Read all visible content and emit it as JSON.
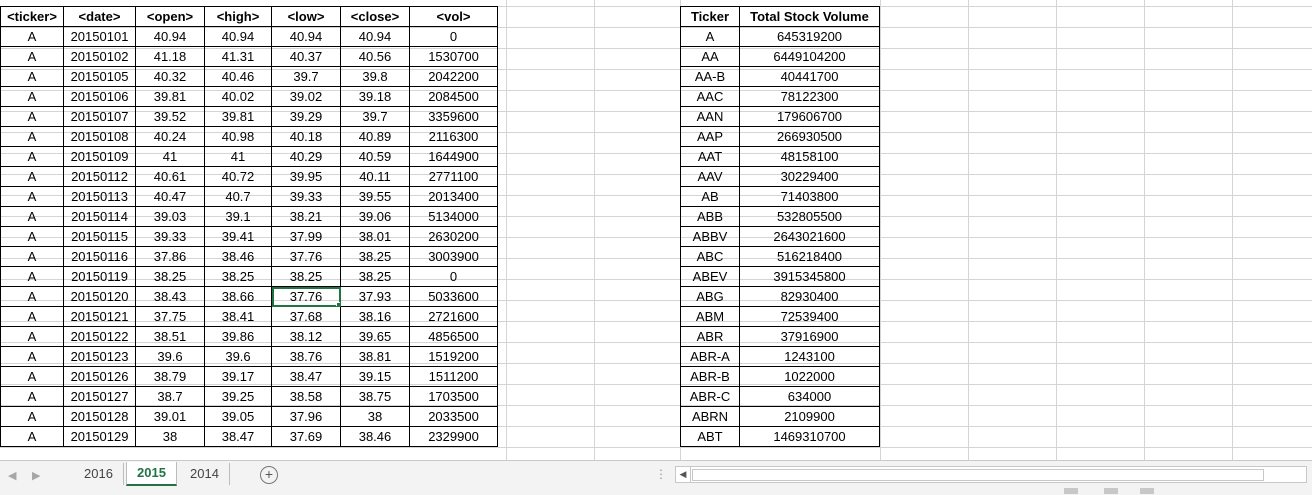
{
  "sheet1": {
    "headers": [
      "<ticker>",
      "<date>",
      "<open>",
      "<high>",
      "<low>",
      "<close>",
      "<vol>"
    ],
    "rows": [
      [
        "A",
        "20150101",
        "40.94",
        "40.94",
        "40.94",
        "40.94",
        "0"
      ],
      [
        "A",
        "20150102",
        "41.18",
        "41.31",
        "40.37",
        "40.56",
        "1530700"
      ],
      [
        "A",
        "20150105",
        "40.32",
        "40.46",
        "39.7",
        "39.8",
        "2042200"
      ],
      [
        "A",
        "20150106",
        "39.81",
        "40.02",
        "39.02",
        "39.18",
        "2084500"
      ],
      [
        "A",
        "20150107",
        "39.52",
        "39.81",
        "39.29",
        "39.7",
        "3359600"
      ],
      [
        "A",
        "20150108",
        "40.24",
        "40.98",
        "40.18",
        "40.89",
        "2116300"
      ],
      [
        "A",
        "20150109",
        "41",
        "41",
        "40.29",
        "40.59",
        "1644900"
      ],
      [
        "A",
        "20150112",
        "40.61",
        "40.72",
        "39.95",
        "40.11",
        "2771100"
      ],
      [
        "A",
        "20150113",
        "40.47",
        "40.7",
        "39.33",
        "39.55",
        "2013400"
      ],
      [
        "A",
        "20150114",
        "39.03",
        "39.1",
        "38.21",
        "39.06",
        "5134000"
      ],
      [
        "A",
        "20150115",
        "39.33",
        "39.41",
        "37.99",
        "38.01",
        "2630200"
      ],
      [
        "A",
        "20150116",
        "37.86",
        "38.46",
        "37.76",
        "38.25",
        "3003900"
      ],
      [
        "A",
        "20150119",
        "38.25",
        "38.25",
        "38.25",
        "38.25",
        "0"
      ],
      [
        "A",
        "20150120",
        "38.43",
        "38.66",
        "37.76",
        "37.93",
        "5033600"
      ],
      [
        "A",
        "20150121",
        "37.75",
        "38.41",
        "37.68",
        "38.16",
        "2721600"
      ],
      [
        "A",
        "20150122",
        "38.51",
        "39.86",
        "38.12",
        "39.65",
        "4856500"
      ],
      [
        "A",
        "20150123",
        "39.6",
        "39.6",
        "38.76",
        "38.81",
        "1519200"
      ],
      [
        "A",
        "20150126",
        "38.79",
        "39.17",
        "38.47",
        "39.15",
        "1511200"
      ],
      [
        "A",
        "20150127",
        "38.7",
        "39.25",
        "38.58",
        "38.75",
        "1703500"
      ],
      [
        "A",
        "20150128",
        "39.01",
        "39.05",
        "37.96",
        "38",
        "2033500"
      ],
      [
        "A",
        "20150129",
        "38",
        "38.47",
        "37.69",
        "38.46",
        "2329900"
      ]
    ]
  },
  "summary": {
    "headers": [
      "Ticker",
      "Total Stock Volume"
    ],
    "rows": [
      [
        "A",
        "645319200"
      ],
      [
        "AA",
        "6449104200"
      ],
      [
        "AA-B",
        "40441700"
      ],
      [
        "AAC",
        "78122300"
      ],
      [
        "AAN",
        "179606700"
      ],
      [
        "AAP",
        "266930500"
      ],
      [
        "AAT",
        "48158100"
      ],
      [
        "AAV",
        "30229400"
      ],
      [
        "AB",
        "71403800"
      ],
      [
        "ABB",
        "532805500"
      ],
      [
        "ABBV",
        "2643021600"
      ],
      [
        "ABC",
        "516218400"
      ],
      [
        "ABEV",
        "3915345800"
      ],
      [
        "ABG",
        "82930400"
      ],
      [
        "ABM",
        "72539400"
      ],
      [
        "ABR",
        "37916900"
      ],
      [
        "ABR-A",
        "1243100"
      ],
      [
        "ABR-B",
        "1022000"
      ],
      [
        "ABR-C",
        "634000"
      ],
      [
        "ABRN",
        "2109900"
      ],
      [
        "ABT",
        "1469310700"
      ]
    ]
  },
  "tabs": [
    "2016",
    "2015",
    "2014"
  ],
  "active_tab": "2015",
  "colors": {
    "accent": "#217346",
    "gridline": "#d4d4d4"
  }
}
